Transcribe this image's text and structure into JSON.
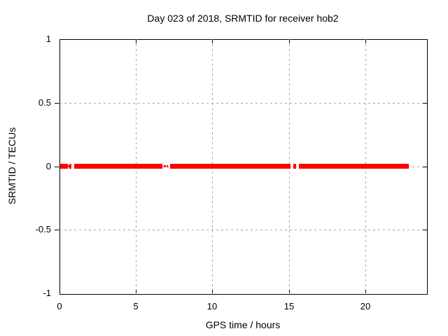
{
  "chart_data": {
    "type": "scatter",
    "title": "Day 023 of 2018, SRMTID for receiver hob2",
    "xlabel": "GPS time / hours",
    "ylabel": "SRMTID / TECUs",
    "xlim": [
      0,
      24
    ],
    "ylim": [
      -1,
      1
    ],
    "xticks": [
      0,
      5,
      10,
      15,
      20
    ],
    "yticks": [
      -1,
      -0.5,
      0,
      0.5,
      1
    ],
    "grid": true,
    "legend": "none",
    "description": "Red band of densely plotted SRMTID points lying flat at 0 TECUs across the day, with short data gaps",
    "series": [
      {
        "name": "SRMTID",
        "color": "#ff0000",
        "y_value": 0,
        "segments": [
          {
            "x_start": 0.05,
            "x_end": 0.55,
            "style": "thick"
          },
          {
            "x_start": 0.55,
            "x_end": 0.64,
            "style": "thin"
          },
          {
            "x_start": 0.64,
            "x_end": 0.78,
            "style": "thick"
          },
          {
            "x_start": 0.96,
            "x_end": 6.73,
            "style": "thick"
          },
          {
            "x_start": 6.82,
            "x_end": 6.96,
            "style": "thin"
          },
          {
            "x_start": 7.03,
            "x_end": 7.12,
            "style": "thin"
          },
          {
            "x_start": 7.24,
            "x_end": 15.11,
            "style": "thick"
          },
          {
            "x_start": 15.3,
            "x_end": 15.48,
            "style": "thick"
          },
          {
            "x_start": 15.66,
            "x_end": 22.86,
            "style": "thick"
          }
        ]
      }
    ],
    "colors": {
      "data": "#ff0000",
      "grid": "#a6a6a6",
      "axis": "#000000",
      "background": "#ffffff",
      "text": "#000000"
    }
  }
}
